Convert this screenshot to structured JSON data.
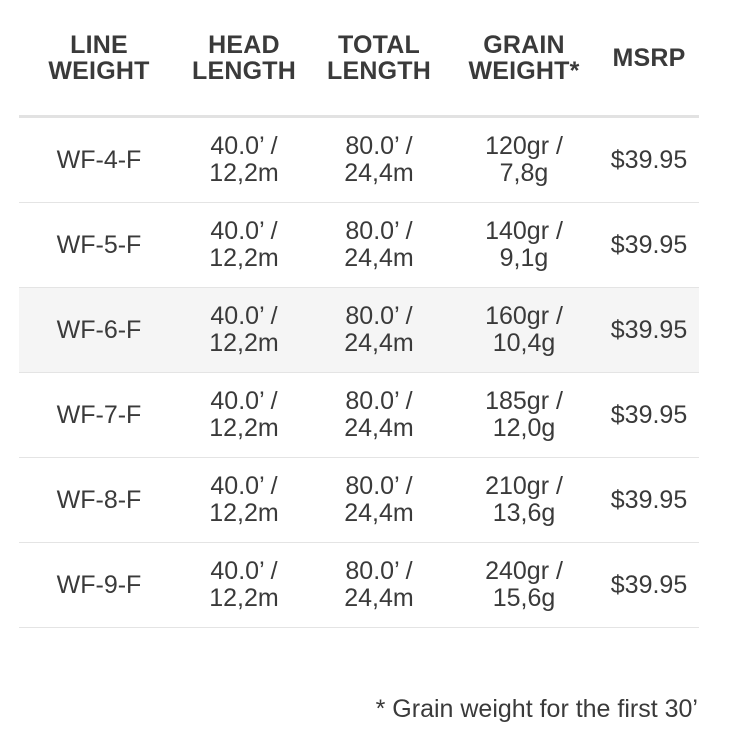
{
  "table": {
    "headers": [
      [
        "LINE",
        "WEIGHT"
      ],
      [
        "HEAD",
        "LENGTH"
      ],
      [
        "TOTAL",
        "LENGTH"
      ],
      [
        "GRAIN",
        "WEIGHT*"
      ],
      [
        "MSRP"
      ]
    ],
    "rows": [
      {
        "line_weight": "WF-4-F",
        "head_length": [
          "40.0’ /",
          "12,2m"
        ],
        "total_length": [
          "80.0’ /",
          "24,4m"
        ],
        "grain_weight": [
          "120gr /",
          "7,8g"
        ],
        "msrp": "$39.95"
      },
      {
        "line_weight": "WF-5-F",
        "head_length": [
          "40.0’ /",
          "12,2m"
        ],
        "total_length": [
          "80.0’ /",
          "24,4m"
        ],
        "grain_weight": [
          "140gr /",
          "9,1g"
        ],
        "msrp": "$39.95"
      },
      {
        "line_weight": "WF-6-F",
        "head_length": [
          "40.0’ /",
          "12,2m"
        ],
        "total_length": [
          "80.0’ /",
          "24,4m"
        ],
        "grain_weight": [
          "160gr /",
          "10,4g"
        ],
        "msrp": "$39.95"
      },
      {
        "line_weight": "WF-7-F",
        "head_length": [
          "40.0’ /",
          "12,2m"
        ],
        "total_length": [
          "80.0’ /",
          "24,4m"
        ],
        "grain_weight": [
          "185gr /",
          "12,0g"
        ],
        "msrp": "$39.95"
      },
      {
        "line_weight": "WF-8-F",
        "head_length": [
          "40.0’ /",
          "12,2m"
        ],
        "total_length": [
          "80.0’ /",
          "24,4m"
        ],
        "grain_weight": [
          "210gr /",
          "13,6g"
        ],
        "msrp": "$39.95"
      },
      {
        "line_weight": "WF-9-F",
        "head_length": [
          "40.0’ /",
          "12,2m"
        ],
        "total_length": [
          "80.0’ /",
          "24,4m"
        ],
        "grain_weight": [
          "240gr /",
          "15,6g"
        ],
        "msrp": "$39.95"
      }
    ],
    "highlighted_row_index": 2
  },
  "footnote": "* Grain weight for the first 30’",
  "colors": {
    "text": "#3a3a3a",
    "row_highlight": "#f5f5f5",
    "divider": "#e4e4e4"
  }
}
